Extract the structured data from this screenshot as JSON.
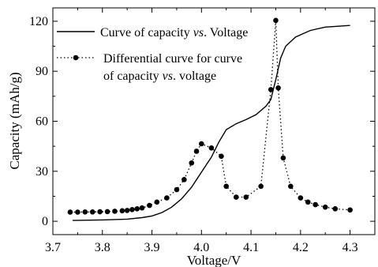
{
  "chart_data": {
    "type": "line",
    "xlabel": "Voltage/V",
    "ylabel": "Capacity (mAh/g)",
    "xlim": [
      3.7,
      4.35
    ],
    "ylim": [
      -8,
      128
    ],
    "xticks": [
      "3.7",
      "3.8",
      "3.9",
      "4.0",
      "4.1",
      "4.2",
      "4.3"
    ],
    "yticks": [
      "0",
      "30",
      "60",
      "90",
      "120"
    ],
    "grid": false,
    "legend_position": "top-left",
    "series": [
      {
        "name": "Curve of capacity vs. Voltage",
        "name_parts": [
          "Curve of capacity ",
          "vs",
          ". Voltage"
        ],
        "style": "solid",
        "color": "#000000",
        "x": [
          3.74,
          3.8,
          3.85,
          3.88,
          3.9,
          3.92,
          3.94,
          3.96,
          3.98,
          4.0,
          4.02,
          4.035,
          4.05,
          4.07,
          4.09,
          4.11,
          4.13,
          4.14,
          4.15,
          4.16,
          4.17,
          4.19,
          4.22,
          4.25,
          4.3
        ],
        "y": [
          0.5,
          0.8,
          1.3,
          2.2,
          3.2,
          5.2,
          8.5,
          13.5,
          20.5,
          29.5,
          38.5,
          47.5,
          55.0,
          58.5,
          61.0,
          64.0,
          69.0,
          73.0,
          85.0,
          98.0,
          105.0,
          110.5,
          114.5,
          116.5,
          117.5
        ]
      },
      {
        "name": "Differential curve for curve of capacity vs. voltage",
        "name_lines": [
          [
            "Differential curve for curve"
          ],
          [
            "of capacity ",
            "vs",
            ". voltage"
          ]
        ],
        "style": "dotted",
        "marker": "circle",
        "color": "#000000",
        "x": [
          3.735,
          3.75,
          3.765,
          3.78,
          3.795,
          3.81,
          3.825,
          3.84,
          3.85,
          3.86,
          3.87,
          3.88,
          3.895,
          3.91,
          3.93,
          3.95,
          3.965,
          3.98,
          3.99,
          4.0,
          4.02,
          4.04,
          4.05,
          4.07,
          4.09,
          4.12,
          4.14,
          4.15,
          4.155,
          4.165,
          4.18,
          4.2,
          4.215,
          4.23,
          4.25,
          4.27,
          4.3
        ],
        "y": [
          5.5,
          5.5,
          5.6,
          5.6,
          5.7,
          5.8,
          6.0,
          6.3,
          6.5,
          7.0,
          7.5,
          8.0,
          9.5,
          11.5,
          14.0,
          19.0,
          25.0,
          35.0,
          42.0,
          46.5,
          44.0,
          39.0,
          21.0,
          14.5,
          14.5,
          21.0,
          79.0,
          120.5,
          80.0,
          38.0,
          21.0,
          14.0,
          11.5,
          10.0,
          8.5,
          7.5,
          6.8
        ]
      }
    ]
  }
}
